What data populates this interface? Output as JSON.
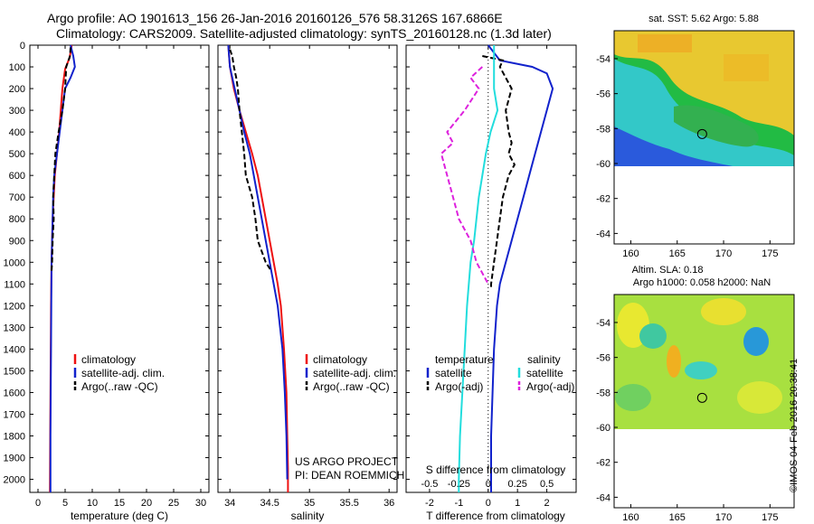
{
  "header": {
    "line1": "Argo profile: AO 1901613_156 26-Jan-2016 20160126_576 58.3126S 167.6866E",
    "line2": "Climatology: CARS2009. Satellite-adjusted climatology: synTS_20160128.nc (1.3d later)"
  },
  "stamp": "©IMOS 04-Feb-2016 20:38:41",
  "colors": {
    "climatology": "#ee1111",
    "satellite": "#1122cc",
    "argo": "#000000",
    "satellite_salinity": "#22dddd",
    "argo_salinity": "#dd22dd"
  },
  "depth_ticks": [
    0,
    100,
    200,
    300,
    400,
    500,
    600,
    700,
    800,
    900,
    1000,
    1100,
    1200,
    1300,
    1400,
    1500,
    1600,
    1700,
    1800,
    1900,
    2000
  ],
  "chart_data": [
    {
      "type": "line",
      "id": "temperature",
      "xlabel": "temperature (deg C)",
      "xticks": [
        0,
        5,
        10,
        15,
        20,
        25,
        30
      ],
      "xlim": [
        -1.5,
        31.5
      ],
      "ylim": [
        2060,
        0
      ],
      "legend": [
        "climatology",
        "satellite-adj. clim.",
        "Argo(..raw -QC)"
      ],
      "series": [
        {
          "name": "climatology",
          "x": [
            6.2,
            6.1,
            5.8,
            5.0,
            4.5,
            4.2,
            3.9,
            3.5,
            3.1,
            2.9,
            2.7,
            2.6,
            2.5,
            2.4,
            2.35,
            2.3,
            2.25,
            2.2
          ],
          "y": [
            0,
            20,
            60,
            110,
            200,
            300,
            400,
            500,
            600,
            700,
            800,
            900,
            1000,
            1200,
            1400,
            1600,
            1800,
            2060
          ]
        },
        {
          "name": "satellite-adj. clim.",
          "x": [
            6.0,
            6.5,
            6.8,
            6.0,
            5.0,
            4.5,
            4.0,
            3.5,
            3.0,
            2.8,
            2.7,
            2.6,
            2.5,
            2.45,
            2.4,
            2.35,
            2.3,
            2.3
          ],
          "y": [
            0,
            50,
            100,
            150,
            200,
            300,
            400,
            500,
            600,
            700,
            800,
            900,
            1000,
            1200,
            1400,
            1600,
            1800,
            2060
          ]
        },
        {
          "name": "Argo(..raw -QC)",
          "x": [
            6.0,
            5.9,
            5.2,
            5.0,
            4.5,
            3.8,
            3.2,
            3.0,
            2.8,
            2.9,
            2.7,
            2.6,
            2.5
          ],
          "y": [
            10,
            50,
            100,
            200,
            300,
            400,
            500,
            600,
            700,
            800,
            900,
            1000,
            1040
          ]
        }
      ]
    },
    {
      "type": "line",
      "id": "salinity",
      "xlabel": "salinity",
      "xticks": [
        34,
        34.5,
        35,
        35.5,
        36
      ],
      "xlim": [
        33.85,
        36.1
      ],
      "ylim": [
        2060,
        0
      ],
      "legend": [
        "climatology",
        "satellite-adj. clim.",
        "Argo(..raw -QC)"
      ],
      "annotation": [
        "US ARGO PROJECT",
        "PI: DEAN ROEMMICH"
      ],
      "series": [
        {
          "name": "climatology",
          "x": [
            33.98,
            34.0,
            34.05,
            34.12,
            34.2,
            34.28,
            34.35,
            34.4,
            34.45,
            34.5,
            34.55,
            34.6,
            34.64,
            34.68,
            34.71,
            34.72,
            34.73,
            34.73
          ],
          "y": [
            0,
            100,
            200,
            300,
            400,
            500,
            600,
            700,
            800,
            900,
            1000,
            1100,
            1200,
            1400,
            1600,
            1800,
            1950,
            2060
          ]
        },
        {
          "name": "satellite-adj. clim.",
          "x": [
            33.98,
            34.0,
            34.06,
            34.12,
            34.18,
            34.25,
            34.3,
            34.35,
            34.4,
            34.45,
            34.5,
            34.55,
            34.6,
            34.66,
            34.69,
            34.71,
            34.72
          ],
          "y": [
            0,
            100,
            200,
            300,
            400,
            500,
            600,
            700,
            800,
            900,
            1000,
            1100,
            1200,
            1400,
            1600,
            1800,
            2000
          ]
        },
        {
          "name": "Argo(..raw -QC)",
          "x": [
            34.0,
            34.03,
            34.05,
            34.08,
            34.1,
            34.12,
            34.15,
            34.18,
            34.2,
            34.28,
            34.32,
            34.35,
            34.45,
            34.52
          ],
          "y": [
            20,
            50,
            100,
            150,
            200,
            300,
            400,
            500,
            600,
            700,
            800,
            900,
            1000,
            1040
          ]
        }
      ]
    },
    {
      "type": "line",
      "id": "difference",
      "xlabel": "T difference from climatology",
      "xlabel2": "S difference from climatology",
      "xticks_T": [
        -2,
        -1,
        0,
        1,
        2
      ],
      "xticks_S": [
        -0.5,
        -0.25,
        0,
        0.25,
        0.5
      ],
      "xlim": [
        -2.8,
        3.0
      ],
      "ylim": [
        2060,
        0
      ],
      "legend_title_T": "temperature",
      "legend_title_S": "salinity",
      "legend_T": [
        "satellite",
        "Argo(-adj)"
      ],
      "legend_S": [
        "satellite",
        "Argo(-adj)"
      ],
      "series": [
        {
          "name": "satellite",
          "x": [
            0.0,
            0.4,
            1.5,
            2.0,
            2.2,
            2.0,
            1.8,
            1.6,
            1.4,
            1.2,
            1.0,
            0.8,
            0.6,
            0.4,
            0.3,
            0.2,
            0.15,
            0.1,
            0.1,
            0.1
          ],
          "y": [
            0,
            70,
            100,
            130,
            200,
            300,
            400,
            500,
            600,
            700,
            800,
            900,
            1000,
            1100,
            1200,
            1400,
            1600,
            1800,
            2000,
            2060
          ]
        },
        {
          "name": "Argo(-adj)",
          "x": [
            -0.2,
            0.5,
            0.4,
            0.8,
            0.6,
            0.7,
            0.8,
            0.7,
            0.9,
            0.7,
            0.5,
            0.4,
            0.3,
            0.2,
            0.15,
            0.1,
            0.1
          ],
          "y": [
            50,
            70,
            100,
            200,
            300,
            400,
            450,
            500,
            550,
            600,
            700,
            800,
            900,
            1000,
            1050,
            1100,
            1120
          ]
        },
        {
          "name": "satellite",
          "x": [
            0.05,
            0.05,
            0.08,
            0.02,
            -0.02,
            -0.05,
            -0.08,
            -0.1,
            -0.12,
            -0.15,
            -0.18,
            -0.2,
            -0.22,
            -0.24,
            -0.25,
            -0.25
          ],
          "y": [
            0,
            200,
            300,
            400,
            500,
            600,
            700,
            800,
            900,
            1000,
            1200,
            1400,
            1600,
            1800,
            2000,
            2060
          ]
        },
        {
          "name": "Argo(-adj)",
          "x": [
            -0.05,
            -0.15,
            -0.08,
            -0.2,
            -0.35,
            -0.3,
            -0.4,
            -0.35,
            -0.3,
            -0.25,
            -0.15,
            -0.1,
            -0.05,
            0.0
          ],
          "y": [
            100,
            150,
            200,
            300,
            400,
            450,
            500,
            600,
            700,
            800,
            900,
            1000,
            1050,
            1100
          ]
        }
      ]
    },
    {
      "type": "heatmap",
      "id": "sst_map",
      "title": "sat. SST: 5.62  Argo: 5.88",
      "xticks": [
        160,
        165,
        170,
        175
      ],
      "yticks": [
        -54,
        -56,
        -58,
        -60,
        -62,
        -64
      ],
      "xlim": [
        158.2,
        177.6
      ],
      "ylim": [
        -64.6,
        -52.4
      ],
      "data_extent_lat": [
        -60,
        -52.4
      ],
      "argo_position": [
        167.69,
        -58.31
      ]
    },
    {
      "type": "heatmap",
      "id": "sla_map",
      "title": "Altim. SLA: 0.18",
      "subtitle": "Argo h1000: 0.058 h2000: NaN",
      "xticks": [
        160,
        165,
        170,
        175
      ],
      "yticks": [
        -54,
        -56,
        -58,
        -60,
        -62,
        -64
      ],
      "xlim": [
        158.2,
        177.6
      ],
      "ylim": [
        -64.6,
        -52.4
      ],
      "data_extent_lat": [
        -60,
        -52.4
      ],
      "argo_position": [
        167.69,
        -58.31
      ]
    }
  ]
}
